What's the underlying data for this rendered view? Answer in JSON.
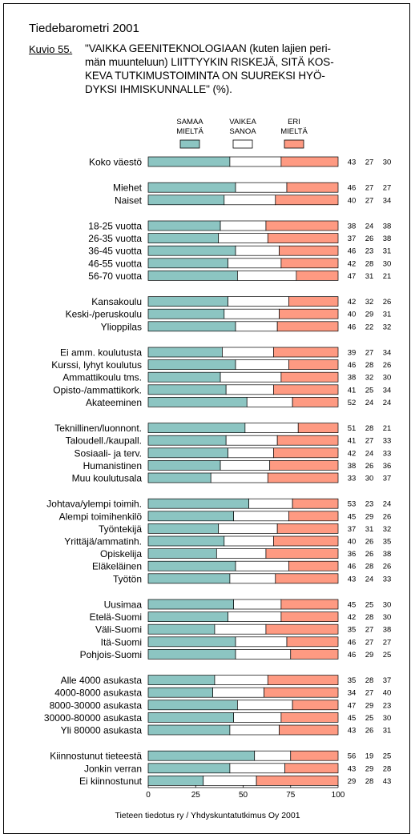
{
  "header": {
    "title": "Tiedebarometri 2001",
    "figure_label": "Kuvio 55.",
    "question_lines": [
      "\"VAIKKA GEENITEKNOLOGIAAN (kuten lajien peri-",
      "män muunteluun) LIITTYYKIN RISKEJÄ, SITÄ KOS-",
      "KEVA TUTKIMUSTOIMINTA ON SUUREKSI HYÖ-",
      "DYKSI IHMISKUNNALLE\" (%)."
    ]
  },
  "footer": {
    "source": "Tieteen tiedotus ry / Yhdyskuntatutkimus Oy 2001"
  },
  "chart_data": {
    "type": "bar",
    "orientation": "horizontal",
    "stacked": true,
    "xlim": [
      0,
      100
    ],
    "xticks": [
      "0",
      "25",
      "50",
      "75",
      "100"
    ],
    "legend_placement": "top",
    "series": [
      {
        "name": [
          "SAMAA",
          "MIELTÄ"
        ],
        "color": "#8cc5c2"
      },
      {
        "name": [
          "VAIKEA",
          "SANOA"
        ],
        "color": "#ffffff"
      },
      {
        "name": [
          "ERI",
          "MIELTÄ"
        ],
        "color": "#fe9a82"
      }
    ],
    "groups": [
      [
        {
          "label": "Koko väestö",
          "values": [
            43,
            27,
            30
          ]
        }
      ],
      [
        {
          "label": "Miehet",
          "values": [
            46,
            27,
            27
          ]
        },
        {
          "label": "Naiset",
          "values": [
            40,
            27,
            34
          ]
        }
      ],
      [
        {
          "label": "18-25 vuotta",
          "values": [
            38,
            24,
            38
          ]
        },
        {
          "label": "26-35 vuotta",
          "values": [
            37,
            26,
            38
          ]
        },
        {
          "label": "36-45 vuotta",
          "values": [
            46,
            23,
            31
          ]
        },
        {
          "label": "46-55 vuotta",
          "values": [
            42,
            28,
            30
          ]
        },
        {
          "label": "56-70 vuotta",
          "values": [
            47,
            31,
            21
          ]
        }
      ],
      [
        {
          "label": "Kansakoulu",
          "values": [
            42,
            32,
            26
          ]
        },
        {
          "label": "Keski-/peruskoulu",
          "values": [
            40,
            29,
            31
          ]
        },
        {
          "label": "Ylioppilas",
          "values": [
            46,
            22,
            32
          ]
        }
      ],
      [
        {
          "label": "Ei amm. koulutusta",
          "values": [
            39,
            27,
            34
          ]
        },
        {
          "label": "Kurssi, lyhyt koulutus",
          "values": [
            46,
            28,
            26
          ]
        },
        {
          "label": "Ammattikoulu tms.",
          "values": [
            38,
            32,
            30
          ]
        },
        {
          "label": "Opisto-/ammattikork.",
          "values": [
            41,
            25,
            34
          ]
        },
        {
          "label": "Akateeminen",
          "values": [
            52,
            24,
            24
          ]
        }
      ],
      [
        {
          "label": "Teknillinen/luonnont.",
          "values": [
            51,
            28,
            21
          ]
        },
        {
          "label": "Taloudell./kaupall.",
          "values": [
            41,
            27,
            33
          ]
        },
        {
          "label": "Sosiaali- ja terv.",
          "values": [
            42,
            24,
            33
          ]
        },
        {
          "label": "Humanistinen",
          "values": [
            38,
            26,
            36
          ]
        },
        {
          "label": "Muu koulutusala",
          "values": [
            33,
            30,
            37
          ]
        }
      ],
      [
        {
          "label": "Johtava/ylempi toimih.",
          "values": [
            53,
            23,
            24
          ]
        },
        {
          "label": "Alempi toimihenkilö",
          "values": [
            45,
            29,
            26
          ]
        },
        {
          "label": "Työntekijä",
          "values": [
            37,
            31,
            32
          ]
        },
        {
          "label": "Yrittäjä/ammatinh.",
          "values": [
            40,
            26,
            35
          ]
        },
        {
          "label": "Opiskelija",
          "values": [
            36,
            26,
            38
          ]
        },
        {
          "label": "Eläkeläinen",
          "values": [
            46,
            28,
            26
          ]
        },
        {
          "label": "Työtön",
          "values": [
            43,
            24,
            33
          ]
        }
      ],
      [
        {
          "label": "Uusimaa",
          "values": [
            45,
            25,
            30
          ]
        },
        {
          "label": "Etelä-Suomi",
          "values": [
            42,
            28,
            30
          ]
        },
        {
          "label": "Väli-Suomi",
          "values": [
            35,
            27,
            38
          ]
        },
        {
          "label": "Itä-Suomi",
          "values": [
            46,
            27,
            27
          ]
        },
        {
          "label": "Pohjois-Suomi",
          "values": [
            46,
            29,
            25
          ]
        }
      ],
      [
        {
          "label": "Alle 4000 asukasta",
          "values": [
            35,
            28,
            37
          ]
        },
        {
          "label": "4000-8000 asukasta",
          "values": [
            34,
            27,
            40
          ]
        },
        {
          "label": "8000-30000 asukasta",
          "values": [
            47,
            29,
            23
          ]
        },
        {
          "label": "30000-80000 asukasta",
          "values": [
            45,
            25,
            30
          ]
        },
        {
          "label": "Yli 80000 asukasta",
          "values": [
            43,
            26,
            31
          ]
        }
      ],
      [
        {
          "label": "Kiinnostunut tieteestä",
          "values": [
            56,
            19,
            25
          ]
        },
        {
          "label": "Jonkin verran",
          "values": [
            43,
            29,
            28
          ]
        },
        {
          "label": "Ei kiinnostunut",
          "values": [
            29,
            28,
            43
          ]
        }
      ]
    ]
  }
}
